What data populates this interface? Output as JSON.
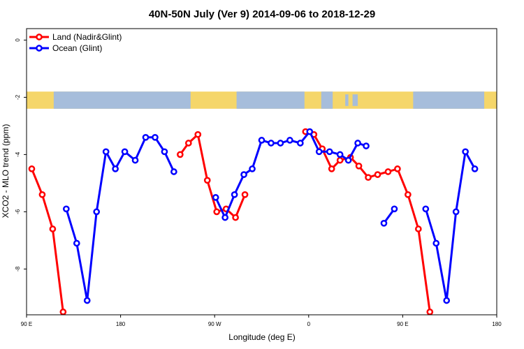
{
  "chart_data": {
    "type": "line",
    "title": "40N-50N July (Ver 9)   2014-09-06 to 2018-12-29",
    "xlabel": "Longitude (deg E)",
    "ylabel": "XCO2 - MLO trend (ppm)",
    "x_tick_labels": [
      "90 E",
      "180",
      "90 W",
      "0",
      "90 E",
      "180"
    ],
    "x_tick_values": [
      90,
      180,
      270,
      360,
      450,
      540
    ],
    "xlim": [
      90,
      540
    ],
    "ylim": [
      -9.6,
      0.4
    ],
    "y_ticks": [
      0,
      -2,
      -4,
      -6,
      -8
    ],
    "grid": false,
    "legend_position": "top-left",
    "map_strip": {
      "y_range": [
        -2.4,
        -1.8
      ],
      "land_color": "#F5D66A",
      "ocean_color": "#A6BDDB"
    },
    "series": [
      {
        "name": "Land (Nadir&Glint)",
        "color": "#FF0000",
        "segments": [
          [
            [
              95,
              -4.5
            ],
            [
              105,
              -5.4
            ],
            [
              115,
              -6.6
            ],
            [
              125,
              -9.5
            ]
          ],
          [
            [
              237,
              -4.0
            ],
            [
              245,
              -3.6
            ],
            [
              254,
              -3.3
            ],
            [
              263,
              -4.9
            ],
            [
              272,
              -6.0
            ],
            [
              281,
              -5.9
            ],
            [
              290,
              -6.2
            ],
            [
              299,
              -5.4
            ]
          ],
          [
            [
              357,
              -3.2
            ],
            [
              365,
              -3.3
            ],
            [
              373,
              -3.8
            ],
            [
              382,
              -4.5
            ],
            [
              390,
              -4.2
            ],
            [
              400,
              -4.1
            ],
            [
              408,
              -4.4
            ],
            [
              417,
              -4.8
            ],
            [
              426,
              -4.7
            ],
            [
              436,
              -4.6
            ],
            [
              445,
              -4.5
            ],
            [
              455,
              -5.4
            ],
            [
              465,
              -6.6
            ],
            [
              476,
              -9.5
            ]
          ]
        ]
      },
      {
        "name": "Ocean (Glint)",
        "color": "#0000FF",
        "segments": [
          [
            [
              128,
              -5.9
            ],
            [
              138,
              -7.1
            ],
            [
              148,
              -9.1
            ],
            [
              157,
              -6.0
            ],
            [
              166,
              -3.9
            ],
            [
              175,
              -4.5
            ],
            [
              184,
              -3.9
            ],
            [
              194,
              -4.2
            ],
            [
              204,
              -3.4
            ],
            [
              213,
              -3.4
            ],
            [
              222,
              -3.9
            ],
            [
              231,
              -4.6
            ]
          ],
          [
            [
              271,
              -5.5
            ],
            [
              280,
              -6.2
            ],
            [
              289,
              -5.4
            ],
            [
              298,
              -4.7
            ],
            [
              306,
              -4.5
            ],
            [
              315,
              -3.5
            ],
            [
              324,
              -3.6
            ],
            [
              333,
              -3.6
            ],
            [
              342,
              -3.5
            ],
            [
              352,
              -3.6
            ],
            [
              361,
              -3.2
            ],
            [
              370,
              -3.9
            ],
            [
              380,
              -3.9
            ],
            [
              390,
              -4.0
            ],
            [
              398,
              -4.2
            ],
            [
              407,
              -3.6
            ],
            [
              415,
              -3.7
            ]
          ],
          [
            [
              432,
              -6.4
            ],
            [
              442,
              -5.9
            ]
          ],
          [
            [
              472,
              -5.9
            ],
            [
              482,
              -7.1
            ],
            [
              492,
              -9.1
            ],
            [
              501,
              -6.0
            ],
            [
              510,
              -3.9
            ],
            [
              519,
              -4.5
            ]
          ]
        ]
      }
    ]
  }
}
